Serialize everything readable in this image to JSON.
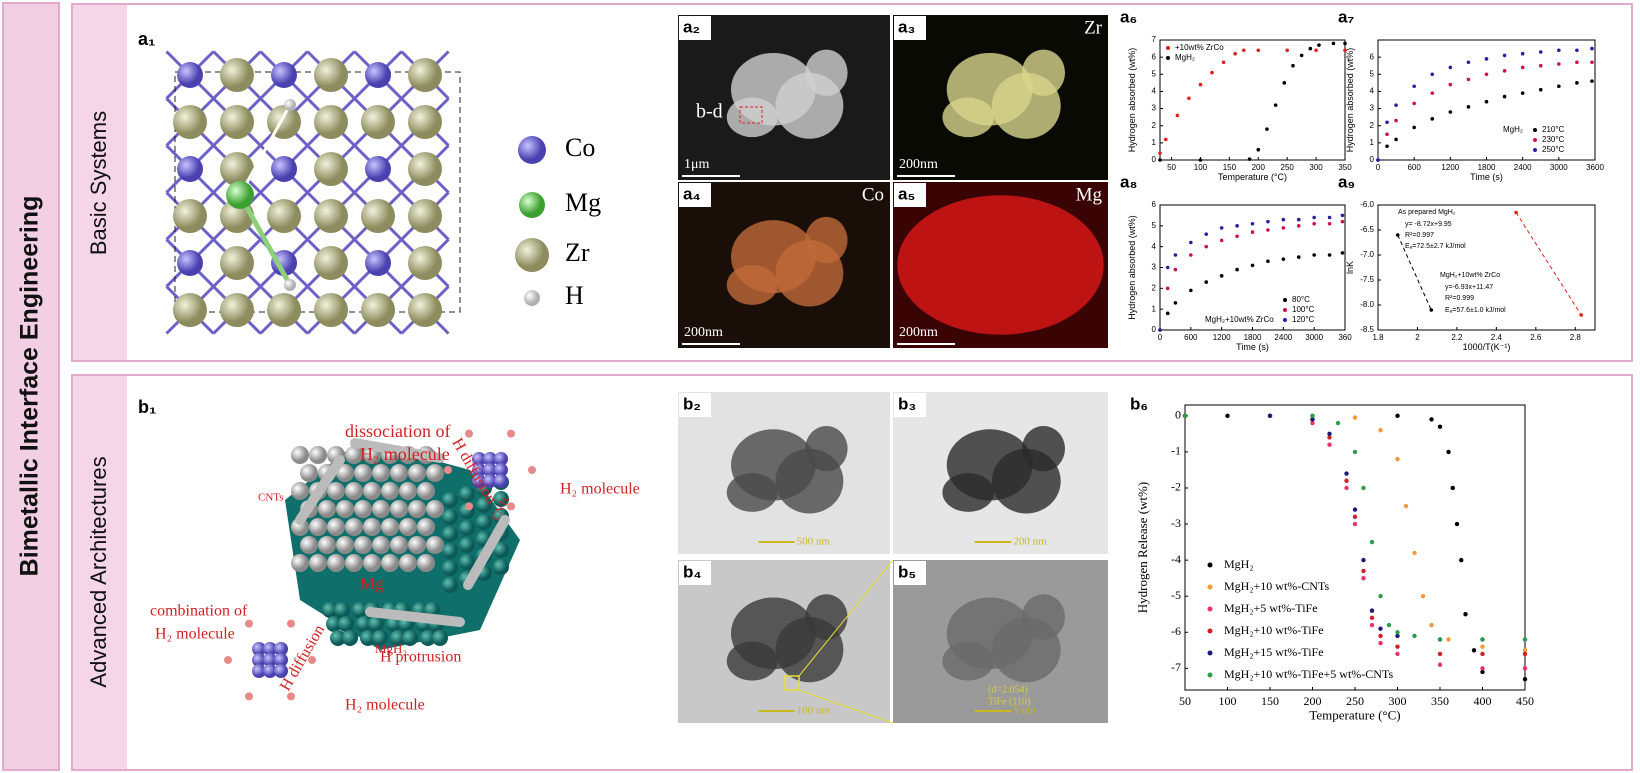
{
  "banner": "Bimetallic Interface Engineering",
  "rows": [
    "Basic Systems",
    "Advanced Architectures"
  ],
  "a1": {
    "label": "a₁",
    "legend": [
      "Co",
      "Mg",
      "Zr",
      "H"
    ]
  },
  "images": [
    {
      "label": "a₂",
      "note": "b-d",
      "scale": "1μm"
    },
    {
      "label": "a₃",
      "element": "Zr",
      "scale": "200nm"
    },
    {
      "label": "a₄",
      "element": "Co",
      "scale": "200nm"
    },
    {
      "label": "a₅",
      "element": "Mg",
      "scale": "200nm"
    },
    {
      "label": "b₂",
      "scale": "500 nm"
    },
    {
      "label": "b₃",
      "scale": "200 nm"
    },
    {
      "label": "b₄",
      "scale": "100 nm"
    },
    {
      "label": "b₅",
      "scale": "5 nm",
      "notes": [
        "(d=2.054)",
        "TiFe (110)"
      ]
    }
  ],
  "b1": {
    "label": "b₁",
    "texts": [
      "dissociation of",
      "H₂ molecule",
      "H diffusion",
      "H₂ molecule",
      "CNTs",
      "Mg",
      "MgH₂",
      "CNTs",
      "combination of",
      "H₂ molecule",
      "H diffusion",
      "H protrusion",
      "H₂ molecule"
    ]
  },
  "chart_data": [
    {
      "type": "scatter",
      "panel": "a₆",
      "xlabel": "Temperature (°C)",
      "ylabel": "Hydrogen absorbed (wt%)",
      "xlim": [
        30,
        350
      ],
      "xticks": [
        50,
        100,
        150,
        200,
        250,
        300,
        350
      ],
      "ylim": [
        0,
        7
      ],
      "yticks": [
        0,
        1,
        2,
        3,
        4,
        5,
        6,
        7
      ],
      "legend": "upper left",
      "series": [
        {
          "name": "+10wt% ZrCo",
          "color": "#e0201c",
          "x": [
            30,
            40,
            60,
            80,
            100,
            120,
            140,
            160,
            175,
            200,
            250,
            300,
            350
          ],
          "values": [
            0.4,
            1.2,
            2.6,
            3.6,
            4.4,
            5.1,
            5.7,
            6.2,
            6.4,
            6.4,
            6.4,
            6.4,
            6.4
          ]
        },
        {
          "name": "MgH₂",
          "color": "#000000",
          "x": [
            30,
            100,
            185,
            200,
            215,
            230,
            245,
            260,
            275,
            290,
            305,
            330,
            350
          ],
          "values": [
            0,
            0,
            0.05,
            0.6,
            1.8,
            3.2,
            4.5,
            5.5,
            6.1,
            6.5,
            6.7,
            6.8,
            6.8
          ]
        }
      ]
    },
    {
      "type": "scatter",
      "panel": "a₇",
      "xlabel": "Time (s)",
      "ylabel": "Hydrogen absorbed (wt%)",
      "xlim": [
        0,
        3600
      ],
      "xticks": [
        0,
        600,
        1200,
        1800,
        2400,
        3000,
        3600
      ],
      "ylim": [
        0,
        7
      ],
      "yticks": [
        0,
        1,
        2,
        3,
        4,
        5,
        6
      ],
      "legend": "lower right",
      "legend_title": "MgH₂",
      "x": [
        0,
        150,
        300,
        600,
        900,
        1200,
        1500,
        1800,
        2100,
        2400,
        2700,
        3000,
        3300,
        3550
      ],
      "series": [
        {
          "name": "210°C",
          "color": "#000000",
          "values": [
            0,
            0.8,
            1.2,
            1.9,
            2.4,
            2.8,
            3.1,
            3.4,
            3.7,
            3.9,
            4.1,
            4.3,
            4.5,
            4.6
          ]
        },
        {
          "name": "230°C",
          "color": "#d0104a",
          "values": [
            0,
            1.5,
            2.3,
            3.3,
            3.9,
            4.4,
            4.7,
            5.0,
            5.2,
            5.4,
            5.5,
            5.6,
            5.7,
            5.7
          ]
        },
        {
          "name": "250°C",
          "color": "#2a1fa0",
          "values": [
            0,
            2.2,
            3.2,
            4.3,
            5.0,
            5.4,
            5.7,
            5.9,
            6.1,
            6.2,
            6.3,
            6.4,
            6.4,
            6.5
          ]
        }
      ]
    },
    {
      "type": "scatter",
      "panel": "a₈",
      "xlabel": "Time (s)",
      "ylabel": "Hydrogen absorbed (wt%)",
      "xlim": [
        0,
        3600
      ],
      "xticks": [
        0,
        600,
        1200,
        1800,
        2400,
        3000,
        {
          "value": 3600,
          "label": "360"
        }
      ],
      "ylim": [
        0,
        6
      ],
      "yticks": [
        0,
        1,
        2,
        3,
        4,
        5,
        6
      ],
      "legend": "lower right",
      "legend_title": "MgH₂+10wt% ZrCo",
      "x": [
        0,
        150,
        300,
        600,
        900,
        1200,
        1500,
        1800,
        2100,
        2400,
        2700,
        3000,
        3300,
        3550
      ],
      "series": [
        {
          "name": "80°C",
          "color": "#000000",
          "values": [
            0,
            0.8,
            1.3,
            1.9,
            2.3,
            2.6,
            2.9,
            3.1,
            3.3,
            3.4,
            3.5,
            3.6,
            3.6,
            3.7
          ]
        },
        {
          "name": "100°C",
          "color": "#d0104a",
          "values": [
            0,
            2.0,
            2.9,
            3.6,
            4.0,
            4.3,
            4.5,
            4.7,
            4.8,
            4.9,
            5.0,
            5.1,
            5.1,
            5.2
          ]
        },
        {
          "name": "120°C",
          "color": "#2a1fa0",
          "values": [
            0,
            3.0,
            3.6,
            4.2,
            4.6,
            4.9,
            5.0,
            5.1,
            5.2,
            5.3,
            5.3,
            5.4,
            5.4,
            5.5
          ]
        }
      ]
    },
    {
      "type": "scatter",
      "panel": "a₉",
      "xlabel": "1000/T(K⁻¹)",
      "ylabel": "lnK",
      "xlim": [
        1.8,
        2.9
      ],
      "xticks": [
        1.8,
        2.0,
        2.2,
        2.4,
        2.6,
        2.8
      ],
      "ylim": [
        -8.5,
        -6.0
      ],
      "yticks": [
        {
          "value": -6.0,
          "label": "-6.0"
        },
        -6.5,
        {
          "value": -7.0,
          "label": "-7.0"
        },
        -7.5,
        {
          "value": -8.0,
          "label": "-8.0"
        },
        -8.5
      ],
      "annotations": [
        "As prepared MgH₂",
        "y= -8.72x+9.95",
        "R²=0.997",
        "Eₐ=72.5±2.7 kJ/mol",
        "MgH₂+10wt% ZrCo",
        "y=-6.93x+11.47",
        "R²=0.999",
        "Eₐ=57.6±1.0 kJ/mol"
      ],
      "series": [
        {
          "color": "#000000",
          "line": "dashed",
          "x": [
            1.9,
            2.07
          ],
          "values": [
            -6.6,
            -8.1
          ]
        },
        {
          "color": "#e0201c",
          "line": "dashed",
          "x": [
            2.5,
            2.83
          ],
          "values": [
            -6.15,
            -8.2
          ]
        }
      ]
    },
    {
      "type": "scatter",
      "panel": "b₆",
      "xlabel": "Temperature (°C)",
      "ylabel": "Hydrogen Release (wt%)",
      "xlim": [
        50,
        450
      ],
      "xticks": [
        50,
        100,
        150,
        200,
        250,
        300,
        350,
        400,
        450
      ],
      "ylim": [
        -7.6,
        0.3
      ],
      "yticks": [
        0,
        -1,
        -2,
        -3,
        -4,
        -5,
        -6,
        -7
      ],
      "legend": "lower left",
      "series": [
        {
          "name": "MgH₂",
          "color": "#000000",
          "x": [
            50,
            100,
            200,
            300,
            340,
            350,
            360,
            365,
            370,
            375,
            380,
            390,
            400,
            450
          ],
          "values": [
            0,
            0,
            0,
            0,
            -0.1,
            -0.3,
            -1,
            -2,
            -3,
            -4,
            -5.5,
            -6.5,
            -7.1,
            -7.3
          ]
        },
        {
          "name": "MgH₂+10 wt%-CNTs",
          "color": "#f39a3c",
          "x": [
            50,
            200,
            250,
            280,
            300,
            310,
            320,
            330,
            340,
            360,
            400,
            450
          ],
          "values": [
            0,
            0,
            -0.05,
            -0.4,
            -1.2,
            -2.5,
            -3.8,
            -5,
            -5.8,
            -6.2,
            -6.4,
            -6.5
          ]
        },
        {
          "name": "MgH₂+5  wt%-TiFe",
          "color": "#e8336b",
          "x": [
            50,
            150,
            200,
            220,
            240,
            250,
            260,
            270,
            280,
            300,
            350,
            400,
            450
          ],
          "values": [
            0,
            0,
            -0.2,
            -0.8,
            -2,
            -3,
            -4.5,
            -5.8,
            -6.3,
            -6.6,
            -6.9,
            -7.0,
            -7.0
          ]
        },
        {
          "name": "MgH₂+10 wt%-TiFe",
          "color": "#d0202a",
          "x": [
            50,
            150,
            200,
            220,
            240,
            250,
            260,
            270,
            280,
            300,
            350,
            400,
            450
          ],
          "values": [
            0,
            0,
            -0.1,
            -0.6,
            -1.8,
            -2.8,
            -4.3,
            -5.6,
            -6.1,
            -6.4,
            -6.6,
            -6.6,
            -6.6
          ]
        },
        {
          "name": "MgH₂+15 wt%-TiFe",
          "color": "#1a1a7a",
          "x": [
            50,
            150,
            200,
            220,
            240,
            250,
            260,
            270,
            280,
            300,
            350,
            400,
            450
          ],
          "values": [
            0,
            0,
            -0.1,
            -0.5,
            -1.6,
            -2.6,
            -4.0,
            -5.4,
            -5.9,
            -6.1,
            -6.2,
            -6.2,
            -6.2
          ]
        },
        {
          "name": "MgH₂+10 wt%-TiFe+5 wt%-CNTs",
          "color": "#2aa04a",
          "x": [
            50,
            200,
            230,
            250,
            260,
            270,
            280,
            290,
            300,
            320,
            350,
            400,
            450
          ],
          "values": [
            0,
            0,
            -0.2,
            -1,
            -2,
            -3.5,
            -5,
            -5.8,
            -6.0,
            -6.1,
            -6.2,
            -6.2,
            -6.2
          ]
        }
      ]
    }
  ]
}
